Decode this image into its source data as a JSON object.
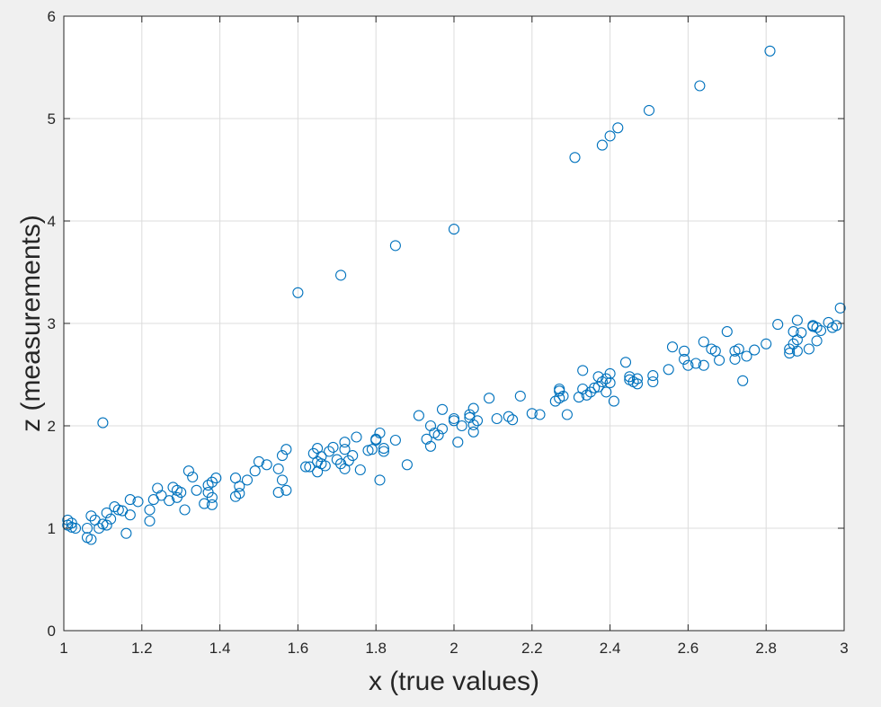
{
  "chart_data": {
    "type": "scatter",
    "title": "",
    "xlabel": "x (true values)",
    "ylabel": "z (measurements)",
    "xlim": [
      1,
      3
    ],
    "ylim": [
      0,
      6
    ],
    "xticks": [
      "1",
      "1.2",
      "1.4",
      "1.6",
      "1.8",
      "2",
      "2.2",
      "2.4",
      "2.6",
      "2.8",
      "3"
    ],
    "yticks": [
      "0",
      "1",
      "2",
      "3",
      "4",
      "5",
      "6"
    ],
    "grid": true,
    "marker": "circle-open",
    "color": "#0072bd",
    "series": [
      {
        "points": [
          [
            1.01,
            1.03
          ],
          [
            1.01,
            1.08
          ],
          [
            1.02,
            1.05
          ],
          [
            1.02,
            1.01
          ],
          [
            1.03,
            1.0
          ],
          [
            1.06,
            0.91
          ],
          [
            1.06,
            1.0
          ],
          [
            1.07,
            0.89
          ],
          [
            1.07,
            1.12
          ],
          [
            1.08,
            1.08
          ],
          [
            1.09,
            1.0
          ],
          [
            1.1,
            1.04
          ],
          [
            1.11,
            1.15
          ],
          [
            1.11,
            1.03
          ],
          [
            1.12,
            1.09
          ],
          [
            1.13,
            1.21
          ],
          [
            1.14,
            1.18
          ],
          [
            1.15,
            1.17
          ],
          [
            1.16,
            0.95
          ],
          [
            1.17,
            1.13
          ],
          [
            1.17,
            1.28
          ],
          [
            1.19,
            1.26
          ],
          [
            1.22,
            1.18
          ],
          [
            1.22,
            1.07
          ],
          [
            1.23,
            1.28
          ],
          [
            1.24,
            1.39
          ],
          [
            1.25,
            1.32
          ],
          [
            1.27,
            1.27
          ],
          [
            1.28,
            1.4
          ],
          [
            1.29,
            1.3
          ],
          [
            1.29,
            1.37
          ],
          [
            1.3,
            1.35
          ],
          [
            1.31,
            1.18
          ],
          [
            1.32,
            1.56
          ],
          [
            1.33,
            1.5
          ],
          [
            1.34,
            1.37
          ],
          [
            1.36,
            1.24
          ],
          [
            1.37,
            1.35
          ],
          [
            1.37,
            1.42
          ],
          [
            1.38,
            1.45
          ],
          [
            1.38,
            1.3
          ],
          [
            1.38,
            1.23
          ],
          [
            1.39,
            1.49
          ],
          [
            1.44,
            1.31
          ],
          [
            1.44,
            1.49
          ],
          [
            1.45,
            1.41
          ],
          [
            1.45,
            1.34
          ],
          [
            1.47,
            1.47
          ],
          [
            1.49,
            1.56
          ],
          [
            1.5,
            1.65
          ],
          [
            1.52,
            1.62
          ],
          [
            1.55,
            1.35
          ],
          [
            1.55,
            1.58
          ],
          [
            1.56,
            1.47
          ],
          [
            1.56,
            1.71
          ],
          [
            1.57,
            1.77
          ],
          [
            1.57,
            1.37
          ],
          [
            1.62,
            1.6
          ],
          [
            1.63,
            1.6
          ],
          [
            1.64,
            1.73
          ],
          [
            1.65,
            1.65
          ],
          [
            1.65,
            1.78
          ],
          [
            1.65,
            1.55
          ],
          [
            1.66,
            1.7
          ],
          [
            1.66,
            1.63
          ],
          [
            1.67,
            1.61
          ],
          [
            1.68,
            1.75
          ],
          [
            1.69,
            1.79
          ],
          [
            1.7,
            1.67
          ],
          [
            1.71,
            1.63
          ],
          [
            1.72,
            1.58
          ],
          [
            1.72,
            1.84
          ],
          [
            1.72,
            1.77
          ],
          [
            1.73,
            1.66
          ],
          [
            1.74,
            1.71
          ],
          [
            1.75,
            1.89
          ],
          [
            1.76,
            1.57
          ],
          [
            1.78,
            1.76
          ],
          [
            1.79,
            1.77
          ],
          [
            1.8,
            1.86
          ],
          [
            1.8,
            1.87
          ],
          [
            1.81,
            1.47
          ],
          [
            1.81,
            1.93
          ],
          [
            1.82,
            1.75
          ],
          [
            1.82,
            1.78
          ],
          [
            1.85,
            1.86
          ],
          [
            1.88,
            1.62
          ],
          [
            1.91,
            2.1
          ],
          [
            1.93,
            1.87
          ],
          [
            1.94,
            2.0
          ],
          [
            1.94,
            1.8
          ],
          [
            1.95,
            1.93
          ],
          [
            1.96,
            1.91
          ],
          [
            1.97,
            1.97
          ],
          [
            1.97,
            2.16
          ],
          [
            2.0,
            2.07
          ],
          [
            2.0,
            2.05
          ],
          [
            2.01,
            1.84
          ],
          [
            2.02,
            2.0
          ],
          [
            2.04,
            2.08
          ],
          [
            2.04,
            2.11
          ],
          [
            2.05,
            2.17
          ],
          [
            2.05,
            2.01
          ],
          [
            2.05,
            1.94
          ],
          [
            2.06,
            2.05
          ],
          [
            2.09,
            2.27
          ],
          [
            2.11,
            2.07
          ],
          [
            2.14,
            2.09
          ],
          [
            2.15,
            2.06
          ],
          [
            2.17,
            2.29
          ],
          [
            2.2,
            2.12
          ],
          [
            2.22,
            2.11
          ],
          [
            2.26,
            2.24
          ],
          [
            2.27,
            2.27
          ],
          [
            2.27,
            2.36
          ],
          [
            2.27,
            2.34
          ],
          [
            2.28,
            2.29
          ],
          [
            2.29,
            2.11
          ],
          [
            2.32,
            2.28
          ],
          [
            2.33,
            2.54
          ],
          [
            2.33,
            2.36
          ],
          [
            2.34,
            2.3
          ],
          [
            2.35,
            2.33
          ],
          [
            2.36,
            2.37
          ],
          [
            2.37,
            2.48
          ],
          [
            2.37,
            2.38
          ],
          [
            2.38,
            2.43
          ],
          [
            2.39,
            2.33
          ],
          [
            2.39,
            2.46
          ],
          [
            2.4,
            2.42
          ],
          [
            2.4,
            2.51
          ],
          [
            2.41,
            2.24
          ],
          [
            2.44,
            2.62
          ],
          [
            2.45,
            2.45
          ],
          [
            2.45,
            2.48
          ],
          [
            2.46,
            2.43
          ],
          [
            2.47,
            2.46
          ],
          [
            2.47,
            2.41
          ],
          [
            2.51,
            2.49
          ],
          [
            2.51,
            2.43
          ],
          [
            2.55,
            2.55
          ],
          [
            2.56,
            2.77
          ],
          [
            2.59,
            2.73
          ],
          [
            2.59,
            2.65
          ],
          [
            2.6,
            2.59
          ],
          [
            2.62,
            2.61
          ],
          [
            2.64,
            2.59
          ],
          [
            2.64,
            2.82
          ],
          [
            2.66,
            2.75
          ],
          [
            2.67,
            2.73
          ],
          [
            2.68,
            2.64
          ],
          [
            2.7,
            2.92
          ],
          [
            2.72,
            2.73
          ],
          [
            2.72,
            2.65
          ],
          [
            2.73,
            2.75
          ],
          [
            2.74,
            2.44
          ],
          [
            2.75,
            2.68
          ],
          [
            2.77,
            2.74
          ],
          [
            2.8,
            2.8
          ],
          [
            2.83,
            2.99
          ],
          [
            2.86,
            2.71
          ],
          [
            2.86,
            2.75
          ],
          [
            2.87,
            2.8
          ],
          [
            2.87,
            2.92
          ],
          [
            2.88,
            2.73
          ],
          [
            2.88,
            2.84
          ],
          [
            2.88,
            3.03
          ],
          [
            2.89,
            2.91
          ],
          [
            2.91,
            2.75
          ],
          [
            2.92,
            2.98
          ],
          [
            2.92,
            2.97
          ],
          [
            2.93,
            2.83
          ],
          [
            2.93,
            2.96
          ],
          [
            2.94,
            2.93
          ],
          [
            2.96,
            3.01
          ],
          [
            2.97,
            2.96
          ],
          [
            2.98,
            2.98
          ],
          [
            2.99,
            3.15
          ],
          [
            1.1,
            2.03
          ],
          [
            1.6,
            3.3
          ],
          [
            1.71,
            3.47
          ],
          [
            1.85,
            3.76
          ],
          [
            2.0,
            3.92
          ],
          [
            2.31,
            4.62
          ],
          [
            2.38,
            4.74
          ],
          [
            2.4,
            4.83
          ],
          [
            2.42,
            4.91
          ],
          [
            2.5,
            5.08
          ],
          [
            2.63,
            5.32
          ],
          [
            2.81,
            5.66
          ]
        ]
      }
    ]
  }
}
